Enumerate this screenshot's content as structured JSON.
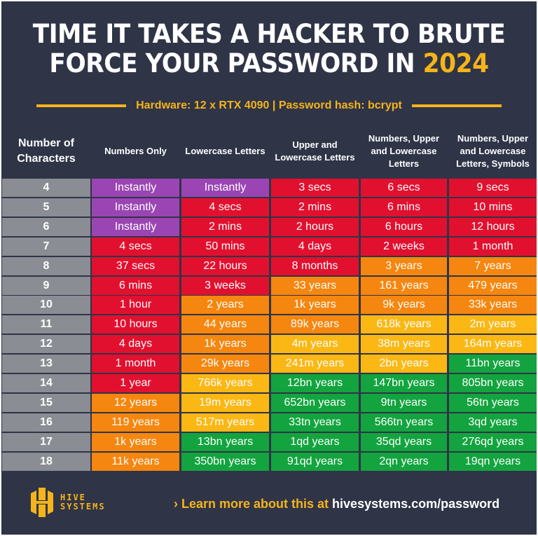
{
  "title": {
    "line1": "TIME IT TAKES A HACKER TO BRUTE",
    "line2": "FORCE YOUR PASSWORD IN",
    "year": "2024"
  },
  "subtitle": "Hardware: 12 x RTX 4090 | Password hash: bcrypt",
  "colors": {
    "background": "#2f3447",
    "accent": "#f5b41a",
    "P": "#9a45b3",
    "R": "#e2102f",
    "O": "#f5860f",
    "Y": "#fbb714",
    "G": "#13a43f"
  },
  "headers": [
    "Number of Characters",
    "Numbers Only",
    "Lowercase Letters",
    "Upper and Lowercase Letters",
    "Numbers, Upper and Lowercase Letters",
    "Numbers, Upper and Lowercase Letters, Symbols"
  ],
  "rows": [
    {
      "n": "4",
      "values": [
        "Instantly",
        "Instantly",
        "3 secs",
        "6 secs",
        "9 secs"
      ],
      "colors": [
        "P",
        "P",
        "R",
        "R",
        "R"
      ]
    },
    {
      "n": "5",
      "values": [
        "Instantly",
        "4 secs",
        "2 mins",
        "6 mins",
        "10 mins"
      ],
      "colors": [
        "P",
        "R",
        "R",
        "R",
        "R"
      ]
    },
    {
      "n": "6",
      "values": [
        "Instantly",
        "2 mins",
        "2 hours",
        "6 hours",
        "12 hours"
      ],
      "colors": [
        "P",
        "R",
        "R",
        "R",
        "R"
      ]
    },
    {
      "n": "7",
      "values": [
        "4 secs",
        "50 mins",
        "4 days",
        "2 weeks",
        "1 month"
      ],
      "colors": [
        "R",
        "R",
        "R",
        "R",
        "R"
      ]
    },
    {
      "n": "8",
      "values": [
        "37 secs",
        "22 hours",
        "8 months",
        "3 years",
        "7 years"
      ],
      "colors": [
        "R",
        "R",
        "R",
        "O",
        "O"
      ]
    },
    {
      "n": "9",
      "values": [
        "6 mins",
        "3 weeks",
        "33 years",
        "161 years",
        "479 years"
      ],
      "colors": [
        "R",
        "R",
        "O",
        "O",
        "O"
      ]
    },
    {
      "n": "10",
      "values": [
        "1 hour",
        "2 years",
        "1k years",
        "9k years",
        "33k years"
      ],
      "colors": [
        "R",
        "O",
        "O",
        "O",
        "O"
      ]
    },
    {
      "n": "11",
      "values": [
        "10 hours",
        "44 years",
        "89k years",
        "618k years",
        "2m years"
      ],
      "colors": [
        "R",
        "O",
        "O",
        "Y",
        "Y"
      ]
    },
    {
      "n": "12",
      "values": [
        "4 days",
        "1k years",
        "4m years",
        "38m years",
        "164m years"
      ],
      "colors": [
        "R",
        "O",
        "Y",
        "Y",
        "Y"
      ]
    },
    {
      "n": "13",
      "values": [
        "1 month",
        "29k years",
        "241m years",
        "2bn years",
        "11bn years"
      ],
      "colors": [
        "R",
        "O",
        "Y",
        "Y",
        "G"
      ]
    },
    {
      "n": "14",
      "values": [
        "1 year",
        "766k years",
        "12bn years",
        "147bn years",
        "805bn years"
      ],
      "colors": [
        "R",
        "Y",
        "G",
        "G",
        "G"
      ]
    },
    {
      "n": "15",
      "values": [
        "12 years",
        "19m years",
        "652bn years",
        "9tn years",
        "56tn years"
      ],
      "colors": [
        "O",
        "Y",
        "G",
        "G",
        "G"
      ]
    },
    {
      "n": "16",
      "values": [
        "119 years",
        "517m years",
        "33tn years",
        "566tn years",
        "3qd years"
      ],
      "colors": [
        "O",
        "Y",
        "G",
        "G",
        "G"
      ]
    },
    {
      "n": "17",
      "values": [
        "1k years",
        "13bn years",
        "1qd years",
        "35qd years",
        "276qd years"
      ],
      "colors": [
        "O",
        "G",
        "G",
        "G",
        "G"
      ]
    },
    {
      "n": "18",
      "values": [
        "11k years",
        "350bn years",
        "91qd years",
        "2qn years",
        "19qn years"
      ],
      "colors": [
        "O",
        "G",
        "G",
        "G",
        "G"
      ]
    }
  ],
  "footer": {
    "logo_line1": "HIVE",
    "logo_line2": "SYSTEMS",
    "learn_prefix": "› Learn more about this at",
    "url": "hivesystems.com/password"
  }
}
